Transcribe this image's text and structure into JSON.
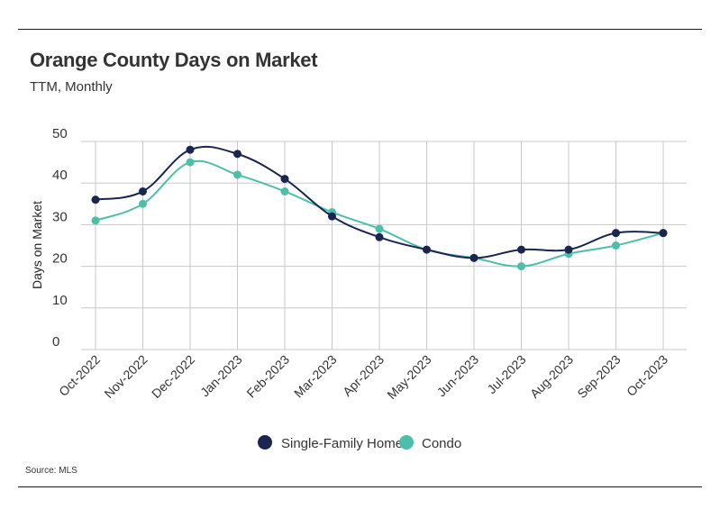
{
  "header": {
    "title": "Orange County Days on Market",
    "subtitle": "TTM, Monthly"
  },
  "source": "Source:  MLS",
  "colors": {
    "single_family": "#1a2550",
    "condo": "#4dbfa8",
    "grid": "#c8c8c8"
  },
  "chart_data": {
    "type": "line",
    "title": "Orange County Days on Market",
    "subtitle": "TTM, Monthly",
    "xlabel": "",
    "ylabel": "Days on Market",
    "ylim": [
      0,
      50
    ],
    "yticks": [
      0,
      10,
      20,
      30,
      40,
      50
    ],
    "grid": true,
    "legend": "bottom-center",
    "categories": [
      "Oct-2022",
      "Nov-2022",
      "Dec-2022",
      "Jan-2023",
      "Feb-2023",
      "Mar-2023",
      "Apr-2023",
      "May-2023",
      "Jun-2023",
      "Jul-2023",
      "Aug-2023",
      "Sep-2023",
      "Oct-2023"
    ],
    "series": [
      {
        "name": "Single-Family Home",
        "color": "#1a2550",
        "values": [
          36,
          38,
          48,
          47,
          41,
          32,
          27,
          24,
          22,
          24,
          24,
          28,
          28
        ]
      },
      {
        "name": "Condo",
        "color": "#4dbfa8",
        "values": [
          31,
          35,
          45,
          42,
          38,
          33,
          29,
          24,
          22,
          20,
          23,
          25,
          28
        ]
      }
    ]
  }
}
